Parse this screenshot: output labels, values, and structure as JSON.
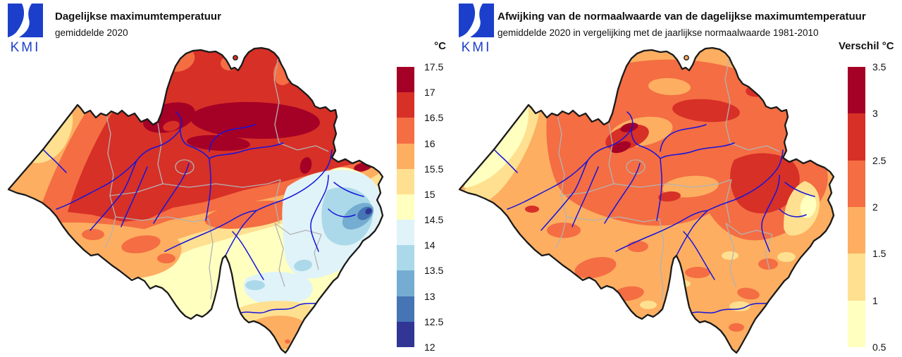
{
  "panels": {
    "left": {
      "logo_text": "KMI",
      "title": "Dagelijkse maximumtemperatuur",
      "subtitle": "gemiddelde 2020",
      "legend": {
        "unit_label": "°C",
        "ticks": [
          "17.5",
          "17",
          "16.5",
          "16",
          "15.5",
          "15",
          "14.5",
          "14",
          "13.5",
          "13",
          "12.5",
          "12"
        ],
        "colors": [
          "#a50026",
          "#d73027",
          "#f46d43",
          "#fdae61",
          "#fee090",
          "#ffffbf",
          "#e0f3f8",
          "#abd9e9",
          "#74add1",
          "#4575b4",
          "#313695"
        ]
      }
    },
    "right": {
      "logo_text": "KMI",
      "title": "Afwijking van de normaalwaarde van de dagelijkse maximumtemperatuur",
      "subtitle": "gemiddelde 2020 in vergelijking met de jaarlijkse normaalwaarde 1981-2010",
      "legend": {
        "unit_label": "Verschil °C",
        "ticks": [
          "3.5",
          "3",
          "2.5",
          "2",
          "1.5",
          "1",
          "0.5"
        ],
        "colors": [
          "#a50026",
          "#d73027",
          "#f46d43",
          "#fdae61",
          "#fee090",
          "#ffffbf"
        ]
      }
    }
  },
  "map_meta": {
    "region": "Belgium",
    "country_border_color": "#1a1a1a",
    "province_border_color": "#b3b3b3",
    "river_color": "#1414dd",
    "logo_color": "#1c3fcb"
  }
}
